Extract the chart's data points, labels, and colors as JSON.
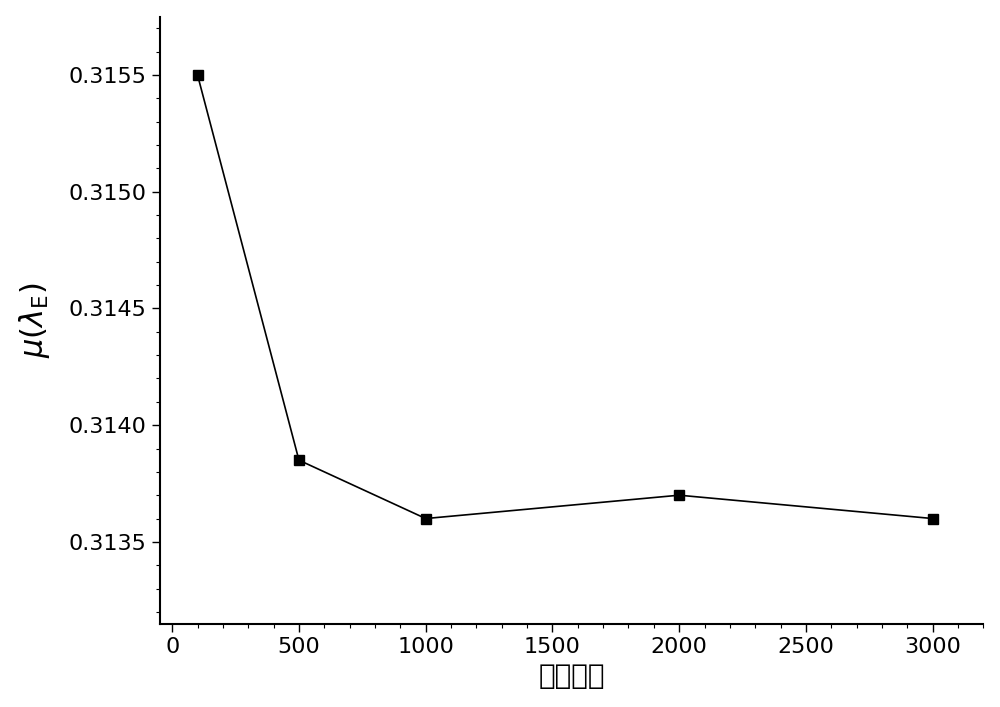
{
  "x": [
    100,
    500,
    1000,
    2000,
    3000
  ],
  "y": [
    0.3155,
    0.31385,
    0.3136,
    0.3137,
    0.3136
  ],
  "xlabel": "样本数量",
  "line_color": "#000000",
  "marker": "s",
  "marker_color": "#000000",
  "marker_size": 7,
  "line_width": 1.2,
  "xlim": [
    -50,
    3200
  ],
  "ylim": [
    0.31315,
    0.31575
  ],
  "xticks": [
    0,
    500,
    1000,
    1500,
    2000,
    2500,
    3000
  ],
  "yticks": [
    0.3135,
    0.314,
    0.3145,
    0.315,
    0.3155
  ],
  "xlabel_fontsize": 20,
  "ylabel_fontsize": 20,
  "tick_fontsize": 16,
  "background_color": "#ffffff"
}
